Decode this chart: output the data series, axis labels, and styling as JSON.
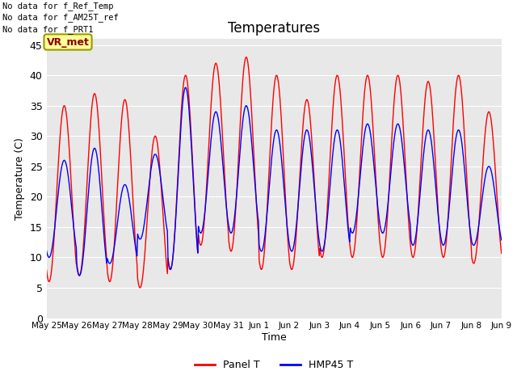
{
  "title": "Temperatures",
  "xlabel": "Time",
  "ylabel": "Temperature (C)",
  "ylim": [
    0,
    46
  ],
  "yticks": [
    0,
    5,
    10,
    15,
    20,
    25,
    30,
    35,
    40,
    45
  ],
  "bg_color": "#e8e8e8",
  "fig_color": "#ffffff",
  "legend_entries": [
    "Panel T",
    "HMP45 T"
  ],
  "annotation_lines": [
    "No data for f_Ref_Temp",
    "No data for f_AM25T_ref",
    "No data for f_PRT1"
  ],
  "vr_met_label": "VR_met",
  "x_tick_labels": [
    "May 25",
    "May 26",
    "May 27",
    "May 28",
    "May 29",
    "May 30",
    "May 31",
    "Jun 1",
    "Jun 2",
    "Jun 3",
    "Jun 4",
    "Jun 5",
    "Jun 6",
    "Jun 7",
    "Jun 8",
    "Jun 9"
  ],
  "num_days": 15,
  "panel_day_max": [
    35,
    37,
    36,
    30,
    40,
    42,
    43,
    40,
    36,
    40,
    40,
    40,
    39,
    40,
    34
  ],
  "panel_day_min": [
    6,
    7,
    6,
    5,
    8,
    12,
    11,
    8,
    8,
    10,
    10,
    10,
    10,
    10,
    9
  ],
  "hmp_day_max": [
    26,
    28,
    22,
    27,
    38,
    34,
    35,
    31,
    31,
    31,
    32,
    32,
    31,
    31,
    25
  ],
  "hmp_day_min": [
    10,
    7,
    9,
    13,
    8,
    14,
    14,
    11,
    11,
    11,
    14,
    14,
    12,
    12,
    12
  ]
}
